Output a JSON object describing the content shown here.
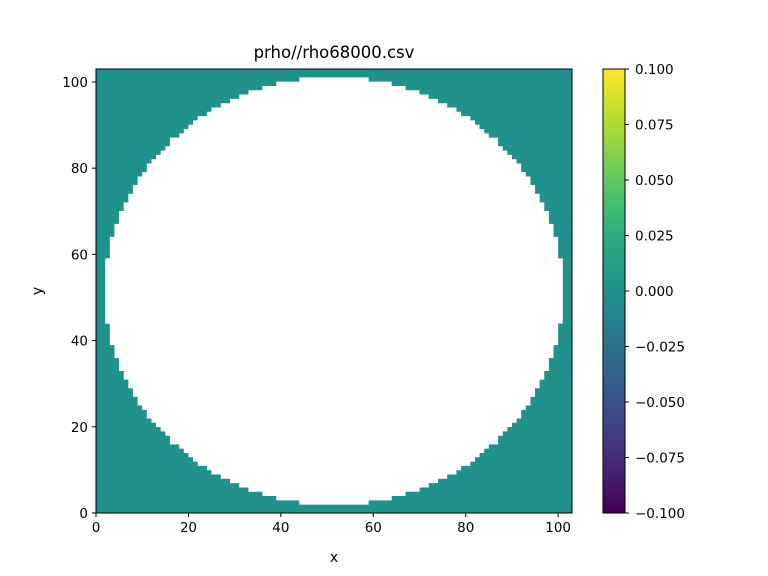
{
  "chart_data": {
    "type": "heatmap",
    "title": "prho//rho68000.csv",
    "xlabel": "x",
    "ylabel": "y",
    "xlim": [
      0,
      103
    ],
    "ylim": [
      0,
      103
    ],
    "x_ticks": [
      0,
      20,
      40,
      60,
      80,
      100
    ],
    "y_ticks": [
      0,
      20,
      40,
      60,
      80,
      100
    ],
    "field_value": 0.0,
    "masked_region": {
      "shape": "circle",
      "center": [
        51.5,
        51.5
      ],
      "radius": 49.5,
      "fill": "white"
    },
    "colorbar": {
      "colormap": "viridis",
      "range": [
        -0.1,
        0.1
      ],
      "ticks": [
        "0.100",
        "0.075",
        "0.050",
        "0.025",
        "0.000",
        "−0.025",
        "−0.050",
        "−0.075",
        "−0.100"
      ],
      "tick_values": [
        0.1,
        0.075,
        0.05,
        0.025,
        0.0,
        -0.025,
        -0.05,
        -0.075,
        -0.1
      ]
    },
    "colors": {
      "field": "#21918c",
      "background": "#ffffff"
    }
  }
}
